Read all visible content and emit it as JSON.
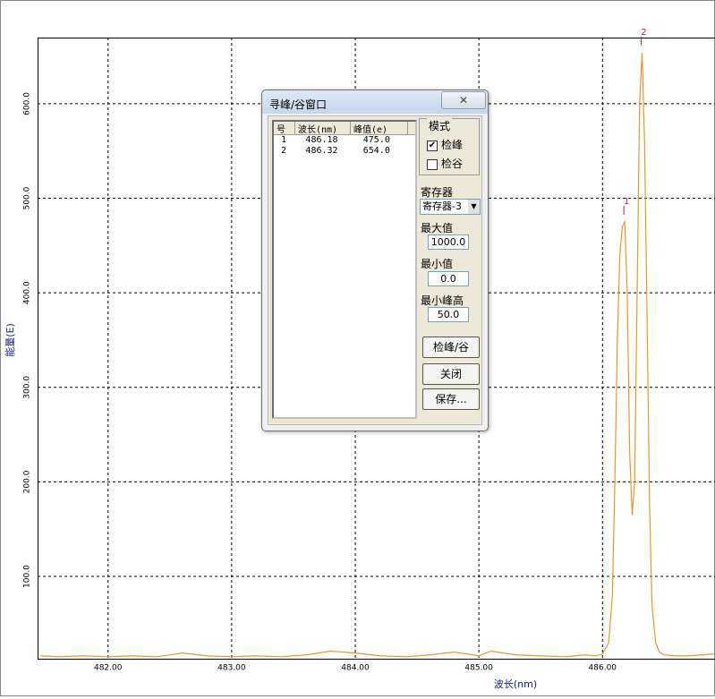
{
  "chart_data": {
    "type": "line",
    "x_label": "波长(nm)",
    "y_label": "能量(E)",
    "xlim": [
      481.43,
      486.91
    ],
    "ylim": [
      12,
      670
    ],
    "xticks": [
      {
        "value": 482,
        "label": "482.00"
      },
      {
        "value": 483,
        "label": "483.00"
      },
      {
        "value": 484,
        "label": "484.00"
      },
      {
        "value": 485,
        "label": "485.00"
      },
      {
        "value": 486,
        "label": "486.00"
      }
    ],
    "yticks": [
      {
        "value": 100,
        "label": "100.0"
      },
      {
        "value": 200,
        "label": "200.0"
      },
      {
        "value": 300,
        "label": "300.0"
      },
      {
        "value": 400,
        "label": "400.0"
      },
      {
        "value": 500,
        "label": "500.0"
      },
      {
        "value": 600,
        "label": "600.0"
      }
    ],
    "grid": true,
    "x": [
      481.45,
      481.6,
      481.8,
      482.0,
      482.2,
      482.4,
      482.6,
      482.8,
      483.0,
      483.2,
      483.4,
      483.6,
      483.8,
      484.0,
      484.2,
      484.4,
      484.6,
      484.8,
      485.0,
      485.1,
      485.3,
      485.5,
      485.7,
      485.85,
      485.95,
      486.0,
      486.05,
      486.08,
      486.1,
      486.12,
      486.14,
      486.16,
      486.18,
      486.2,
      486.22,
      486.24,
      486.26,
      486.28,
      486.3,
      486.32,
      486.34,
      486.36,
      486.38,
      486.4,
      486.43,
      486.46,
      486.5,
      486.6,
      486.7,
      486.8,
      486.9
    ],
    "series": [
      {
        "color": "#f0932a",
        "values": [
          16,
          15,
          16,
          15,
          16,
          15,
          19,
          16,
          15,
          16,
          15,
          17,
          21,
          19,
          16,
          15,
          17,
          20,
          16,
          21,
          17,
          16,
          15,
          17,
          16,
          18,
          30,
          80,
          200,
          350,
          440,
          470,
          475,
          400,
          230,
          165,
          200,
          400,
          600,
          654,
          560,
          380,
          180,
          70,
          30,
          20,
          17,
          16,
          16,
          17,
          18
        ]
      }
    ],
    "peaks": [
      {
        "label": "1",
        "x": 486.18,
        "y": 475
      },
      {
        "label": "2",
        "x": 486.32,
        "y": 654
      }
    ],
    "peak_color": "#d02020"
  },
  "dialog": {
    "title": "寻峰/谷窗口",
    "list": {
      "columns": [
        "号",
        "波长(nm)",
        "峰值(e)"
      ],
      "rows": [
        [
          "1",
          "486.18",
          "475.0"
        ],
        [
          "2",
          "486.32",
          "654.0"
        ]
      ]
    },
    "mode": {
      "label": "模式",
      "options": [
        {
          "label": "检峰",
          "checked": true
        },
        {
          "label": "检谷",
          "checked": false
        }
      ]
    },
    "register": {
      "label": "寄存器",
      "value": "寄存器-3"
    },
    "fields": [
      {
        "label": "最大值",
        "value": "1000.0"
      },
      {
        "label": "最小值",
        "value": "0.0"
      },
      {
        "label": "最小峰高",
        "value": "50.0"
      }
    ],
    "buttons": [
      "检峰/谷",
      "关闭",
      "保存..."
    ]
  }
}
